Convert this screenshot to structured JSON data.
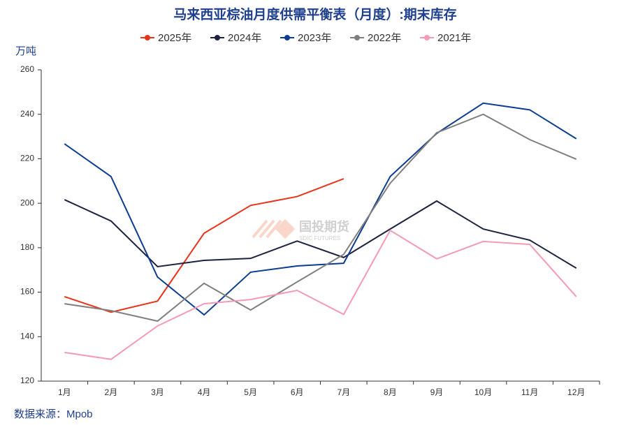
{
  "chart_data": {
    "type": "line",
    "title": "马来西亚棕油月度供需平衡表（月度）:期末库存",
    "y_label": "万吨",
    "source": "数据来源：Mpob",
    "watermark": "国投期货",
    "watermark_sub": "SDIC FUTURES",
    "categories": [
      "1月",
      "2月",
      "3月",
      "4月",
      "5月",
      "6月",
      "7月",
      "8月",
      "9月",
      "10月",
      "11月",
      "12月"
    ],
    "series": [
      {
        "name": "2025年",
        "color": "#e8341c",
        "values": [
          158,
          151,
          156,
          186.5,
          199,
          203,
          211,
          null,
          null,
          null,
          null,
          null
        ]
      },
      {
        "name": "2024年",
        "color": "#1c2340",
        "values": [
          201.6,
          192,
          171.5,
          174.3,
          175.2,
          183,
          175.6,
          188.4,
          201,
          188.4,
          183.4,
          170.8
        ]
      },
      {
        "name": "2023年",
        "color": "#0d3d91",
        "values": [
          226.7,
          212,
          166.8,
          149.8,
          169,
          171.8,
          173,
          212,
          231.4,
          245,
          242,
          229
        ]
      },
      {
        "name": "2022年",
        "color": "#808080",
        "values": [
          154.8,
          151.7,
          147,
          164,
          152,
          164.6,
          177,
          209,
          231.7,
          240,
          228.6,
          219.8
        ]
      },
      {
        "name": "2021年",
        "color": "#f59ab5",
        "values": [
          132.9,
          129.8,
          144.8,
          154.8,
          156.7,
          160.8,
          150,
          187.8,
          175,
          182.8,
          181.5,
          158
        ]
      }
    ],
    "ylim": [
      120,
      260
    ],
    "yticks": [
      120,
      140,
      160,
      180,
      200,
      220,
      240,
      260
    ],
    "grid": false
  }
}
